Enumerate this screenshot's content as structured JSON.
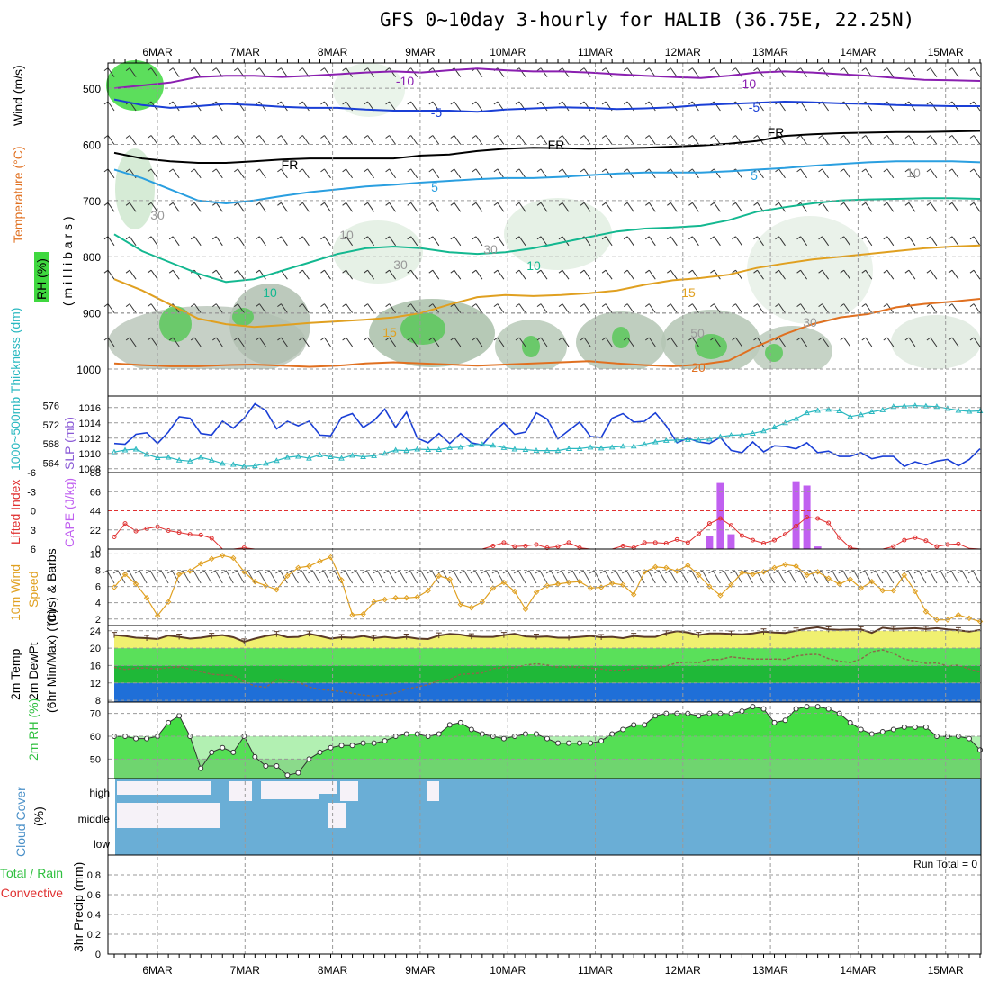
{
  "title": "GFS 0~10day 3-hourly for HALIB (36.75E, 22.25N)",
  "days": [
    "6MAR",
    "7MAR",
    "8MAR",
    "9MAR",
    "10MAR",
    "11MAR",
    "12MAR",
    "13MAR",
    "14MAR",
    "15MAR"
  ],
  "colors": {
    "rh": "#7ad07a",
    "purple": "#8a1fb0",
    "blue": "#1a3fd6",
    "cyan": "#2a9fe0",
    "teal": "#13b890",
    "orange": "#e0a020",
    "darkorange": "#e07020",
    "cloud": "#6aaed6",
    "cloud_gap": "#f6f2f8"
  },
  "chart_data": [
    {
      "type": "contour",
      "name": "upper",
      "ylabels": {
        "wind": "Wind (m/s)",
        "temperature": "Temperature (°C)",
        "rh": "RH (%)",
        "axis": "( m i l l i b a r s )"
      },
      "yticks": [
        500,
        600,
        700,
        800,
        900,
        1000
      ],
      "ylim": [
        455,
        1000
      ],
      "contour_labels": [
        "-10",
        "-5",
        "FR",
        "5",
        "10",
        "15",
        "20",
        "30",
        "50"
      ],
      "isotherms": [
        {
          "name": "-10",
          "color": "#8a1fb0",
          "values": [
            500,
            495,
            490,
            480,
            478,
            478,
            480,
            478,
            475,
            472,
            470,
            472,
            468,
            465,
            468,
            470,
            470,
            472,
            475,
            478,
            480,
            482,
            478,
            472,
            470,
            472,
            475,
            478,
            482,
            485,
            486,
            487
          ]
        },
        {
          "name": "-5",
          "color": "#1a3fd6",
          "values": [
            520,
            530,
            535,
            532,
            528,
            530,
            533,
            535,
            535,
            538,
            540,
            540,
            540,
            542,
            538,
            536,
            534,
            535,
            537,
            536,
            534,
            530,
            528,
            526,
            524,
            525,
            527,
            528,
            530,
            531,
            532,
            532
          ]
        },
        {
          "name": "FR",
          "color": "#000000",
          "values": [
            615,
            625,
            630,
            633,
            633,
            630,
            627,
            625,
            625,
            625,
            625,
            620,
            618,
            612,
            608,
            606,
            607,
            608,
            607,
            606,
            604,
            602,
            599,
            594,
            585,
            582,
            580,
            579,
            578,
            578,
            577,
            576
          ]
        },
        {
          "name": "5",
          "color": "#2a9fe0",
          "values": [
            645,
            660,
            680,
            700,
            705,
            700,
            692,
            685,
            680,
            675,
            672,
            668,
            665,
            662,
            660,
            660,
            658,
            655,
            652,
            650,
            650,
            650,
            648,
            645,
            642,
            638,
            635,
            632,
            630,
            630,
            630,
            632
          ]
        },
        {
          "name": "10",
          "color": "#13b890",
          "values": [
            760,
            790,
            810,
            830,
            845,
            840,
            825,
            810,
            795,
            785,
            782,
            785,
            792,
            795,
            792,
            785,
            775,
            765,
            755,
            750,
            748,
            745,
            735,
            720,
            712,
            705,
            700,
            698,
            697,
            696,
            696,
            697
          ]
        },
        {
          "name": "15",
          "color": "#e0a020",
          "values": [
            840,
            860,
            885,
            910,
            920,
            925,
            922,
            918,
            915,
            912,
            908,
            900,
            885,
            872,
            868,
            870,
            868,
            865,
            860,
            850,
            842,
            838,
            832,
            820,
            812,
            805,
            800,
            795,
            790,
            785,
            782,
            780
          ]
        },
        {
          "name": "20",
          "color": "#e07020",
          "values": [
            990,
            993,
            995,
            995,
            993,
            992,
            994,
            996,
            994,
            990,
            988,
            990,
            992,
            994,
            992,
            990,
            988,
            986,
            990,
            993,
            995,
            992,
            985,
            960,
            938,
            920,
            908,
            902,
            890,
            884,
            880,
            875
          ]
        }
      ]
    },
    {
      "type": "line",
      "name": "thickness-slp",
      "ylabel_left": "1000~500mb Thickness (dm)",
      "ylabel_right": "SLP (mb)",
      "yticks_left": [
        564,
        568,
        572,
        576
      ],
      "yticks_right": [
        1008,
        1010,
        1012,
        1014,
        1016
      ],
      "ylim_left": [
        562,
        578
      ],
      "ylim_right": [
        1007.5,
        1017.5
      ],
      "series": [
        {
          "name": "SLP",
          "color": "#1a3fd6",
          "values": [
            1011.3,
            1011.2,
            1012.5,
            1012.7,
            1011.3,
            1012.8,
            1014.8,
            1014.6,
            1012.6,
            1012.4,
            1014.2,
            1013.3,
            1014.6,
            1016.5,
            1015.6,
            1013.2,
            1014.2,
            1013.6,
            1014.2,
            1012.4,
            1012.3,
            1014.7,
            1015.2,
            1013.4,
            1014.3,
            1015.8,
            1013.4,
            1015.4,
            1012.0,
            1011.4,
            1012.6,
            1011.3,
            1012.6,
            1011.4,
            1011.1,
            1012.7,
            1014.0,
            1012.5,
            1012.8,
            1015.3,
            1014.5,
            1011.9,
            1013.0,
            1014.1,
            1012.2,
            1012.1,
            1014.6,
            1015.2,
            1014.1,
            1014.2,
            1015.3,
            1013.6,
            1011.4,
            1012.0,
            1011.5,
            1011.3,
            1012.1,
            1010.4,
            1010.1,
            1011.5,
            1010.2,
            1011.0,
            1010.9,
            1010.6,
            1011.4,
            1010.1,
            1010.3,
            1009.6,
            1009.6,
            1010.1,
            1009.3,
            1009.6,
            1009.6,
            1008.3,
            1008.9,
            1008.5,
            1009.0,
            1009.2,
            1008.4,
            1009.2,
            1010.6
          ]
        },
        {
          "name": "Thickness",
          "color": "#2ab8c0",
          "values": [
            566.3,
            566.7,
            566.9,
            565.8,
            565.1,
            565.2,
            564.6,
            564.4,
            565.2,
            564.6,
            563.9,
            563.7,
            563.3,
            563.4,
            563.9,
            564.5,
            565.2,
            565.4,
            565.0,
            565.7,
            565.3,
            565.0,
            565.6,
            565.3,
            565.5,
            566.0,
            566.7,
            566.6,
            566.9,
            566.8,
            566.8,
            567.2,
            567.3,
            567.8,
            567.9,
            567.7,
            567.2,
            566.9,
            566.8,
            566.6,
            566.6,
            566.6,
            567.0,
            567.0,
            567.3,
            567.1,
            567.3,
            567.5,
            567.5,
            567.9,
            568.4,
            568.7,
            568.8,
            568.9,
            568.8,
            569.0,
            569.5,
            569.8,
            569.9,
            570.2,
            570.7,
            571.5,
            572.4,
            573.3,
            574.5,
            575.0,
            575.2,
            574.9,
            573.7,
            574.1,
            574.7,
            575.1,
            575.8,
            575.9,
            576.0,
            575.9,
            575.8,
            575.4,
            575.0,
            574.8,
            574.9
          ]
        }
      ]
    },
    {
      "type": "bar",
      "name": "cape-li",
      "ylabel_left": "Lifted Index",
      "ylabel_right": "CAPE (J/kg)",
      "yticks_left": [
        "-6",
        "-3",
        "0",
        "3",
        "6"
      ],
      "yticks_right": [
        0,
        22,
        44,
        66,
        88
      ],
      "ylim_left": [
        6,
        -6
      ],
      "ylim_right": [
        0,
        88
      ],
      "bars": {
        "color": "#c060f0",
        "x_index": [
          55,
          56,
          57,
          63,
          64,
          65,
          66
        ],
        "values": [
          15,
          76,
          17,
          78,
          73,
          3,
          0
        ]
      },
      "series": [
        {
          "name": "Lifted Index",
          "color": "#e03030",
          "values": [
            4.1,
            2.0,
            3.2,
            2.8,
            2.5,
            3.1,
            3.4,
            3.7,
            3.8,
            4.3,
            6.0,
            6.0,
            5.8,
            6.0,
            6.0,
            6.0,
            6.0,
            6.0,
            6.0,
            6.0,
            6.0,
            6.0,
            6.0,
            6.0,
            6.0,
            6.0,
            6.0,
            6.0,
            6.0,
            6.0,
            6.0,
            6.0,
            6.0,
            6.0,
            6.0,
            5.5,
            5.0,
            5.6,
            5.5,
            5.3,
            5.8,
            5.6,
            5.0,
            5.8,
            6.0,
            6.0,
            6.0,
            5.5,
            5.8,
            5.0,
            5.0,
            5.1,
            4.5,
            5.0,
            3.6,
            2.0,
            1.2,
            2.3,
            3.9,
            4.6,
            5.1,
            4.6,
            3.7,
            2.4,
            1.0,
            1.2,
            1.9,
            4.2,
            5.8,
            6.0,
            6.0,
            6.0,
            5.6,
            4.6,
            4.2,
            4.7,
            5.6,
            5.3,
            5.2,
            5.9,
            6.0
          ]
        }
      ]
    },
    {
      "type": "line",
      "name": "wind",
      "ylabel": "10m Wind Speed (m/s) & Barbs",
      "yticks": [
        2,
        4,
        6,
        8,
        10
      ],
      "ylim": [
        1.2,
        10.6
      ],
      "series": [
        {
          "name": "10m Wind Speed",
          "color": "#e0a020",
          "values": [
            5.9,
            7.5,
            6.3,
            4.6,
            2.4,
            4.1,
            7.5,
            7.9,
            8.8,
            9.4,
            9.8,
            9.5,
            7.8,
            6.6,
            6.1,
            5.6,
            7.3,
            8.3,
            8.5,
            9.1,
            9.6,
            6.8,
            2.5,
            2.6,
            4.1,
            4.4,
            4.6,
            4.6,
            4.7,
            5.5,
            7.3,
            6.9,
            3.8,
            3.4,
            4.1,
            5.8,
            6.5,
            5.4,
            3.2,
            5.3,
            6.1,
            6.3,
            6.5,
            6.6,
            5.8,
            5.9,
            6.4,
            6.2,
            5.0,
            7.8,
            8.4,
            8.3,
            7.9,
            8.6,
            7.4,
            6.0,
            4.9,
            6.2,
            7.7,
            7.5,
            7.8,
            8.3,
            8.7,
            8.5,
            7.4,
            7.8,
            7.0,
            6.3,
            6.9,
            5.8,
            6.6,
            5.5,
            5.5,
            7.4,
            5.4,
            2.9,
            1.9,
            1.9,
            2.5,
            2.1,
            1.7
          ]
        }
      ]
    },
    {
      "type": "area",
      "name": "temperature",
      "ylabel": "2m Temp 2m DewPt (6hr Min/Max) (°C)",
      "yticks": [
        8,
        12,
        16,
        20,
        24
      ],
      "ylim": [
        7.6,
        25.2
      ],
      "series": [
        {
          "name": "2m Temp",
          "color": "#5a3a28",
          "values": [
            23.0,
            22.8,
            22.4,
            22.3,
            22.1,
            22.9,
            22.6,
            22.2,
            22.4,
            22.8,
            23.0,
            22.5,
            21.5,
            22.2,
            22.8,
            23.2,
            22.5,
            22.6,
            23.3,
            22.8,
            22.2,
            22.5,
            22.4,
            22.8,
            22.3,
            22.6,
            22.3,
            22.6,
            22.2,
            22.1,
            22.9,
            23.3,
            23.1,
            22.7,
            22.6,
            22.6,
            23.0,
            23.3,
            22.7,
            22.6,
            22.7,
            22.4,
            22.4,
            22.6,
            22.8,
            22.5,
            22.6,
            22.3,
            22.8,
            22.6,
            22.6,
            23.4,
            23.9,
            23.6,
            23.0,
            23.4,
            23.4,
            23.3,
            23.2,
            23.4,
            23.8,
            23.6,
            23.5,
            24.0,
            24.5,
            24.8,
            24.3,
            24.2,
            24.3,
            24.3,
            23.5,
            24.7,
            24.4,
            24.5,
            24.6,
            24.4,
            24.6,
            24.3,
            24.1,
            23.8,
            24.2
          ]
        },
        {
          "name": "2m DewPt",
          "color": "#8a6a4a",
          "values": [
            15.6,
            15.1,
            15.4,
            15.4,
            15.2,
            15.5,
            15.7,
            15.2,
            14.6,
            14.0,
            13.8,
            13.7,
            12.3,
            11.3,
            11.0,
            12.8,
            12.6,
            12.2,
            11.1,
            10.5,
            10.3,
            10.0,
            9.6,
            9.2,
            9.0,
            9.3,
            9.7,
            10.6,
            11.1,
            11.6,
            12.6,
            12.8,
            14.0,
            14.1,
            14.3,
            15.3,
            15.6,
            15.5,
            16.1,
            16.4,
            16.1,
            15.6,
            15.7,
            15.6,
            15.4,
            15.2,
            14.9,
            14.9,
            15.3,
            15.5,
            15.4,
            15.9,
            16.6,
            16.8,
            16.7,
            17.4,
            17.4,
            18.0,
            17.7,
            17.5,
            17.5,
            17.5,
            17.4,
            18.2,
            18.5,
            18.6,
            17.6,
            17.0,
            16.7,
            17.5,
            19.2,
            19.6,
            18.8,
            17.5,
            17.0,
            16.5,
            16.6,
            15.9,
            16.1,
            15.2,
            14.5
          ]
        }
      ]
    },
    {
      "type": "area",
      "name": "rh",
      "ylabel": "2m RH (%)",
      "yticks": [
        50,
        60,
        70
      ],
      "ylim": [
        41.5,
        75
      ],
      "series": [
        {
          "name": "2m RH",
          "color": "#30c040",
          "values": [
            60,
            60,
            59,
            59,
            60,
            66,
            69,
            60,
            46,
            53,
            55,
            53,
            60,
            51,
            47,
            47,
            43,
            44,
            50,
            53,
            55,
            56,
            56,
            57,
            57,
            58,
            60,
            61,
            61,
            60,
            61,
            65,
            66,
            63,
            61,
            60,
            59,
            60,
            61,
            61,
            59,
            57,
            57,
            57,
            57,
            58,
            61,
            63,
            65,
            65,
            69,
            70,
            70,
            70,
            69,
            70,
            70,
            70,
            71,
            73,
            72,
            66,
            67,
            72,
            73,
            73,
            72,
            70,
            66,
            63,
            61,
            62,
            63,
            64,
            64,
            64,
            60,
            60,
            60,
            59,
            54
          ]
        }
      ]
    },
    {
      "type": "heatmap",
      "name": "cloud",
      "ylabel": "Cloud Cover (%)",
      "rows": [
        "high",
        "middle",
        "low"
      ]
    },
    {
      "type": "bar",
      "name": "precip",
      "ylabel": "3hr Precip (mm)",
      "legend": [
        "Total / Rain",
        "Convective"
      ],
      "annotation": "Run Total = 0",
      "yticks": [
        "0",
        "0.2",
        "0.4",
        "0.6",
        "0.8"
      ],
      "ylim": [
        0,
        1
      ]
    }
  ]
}
